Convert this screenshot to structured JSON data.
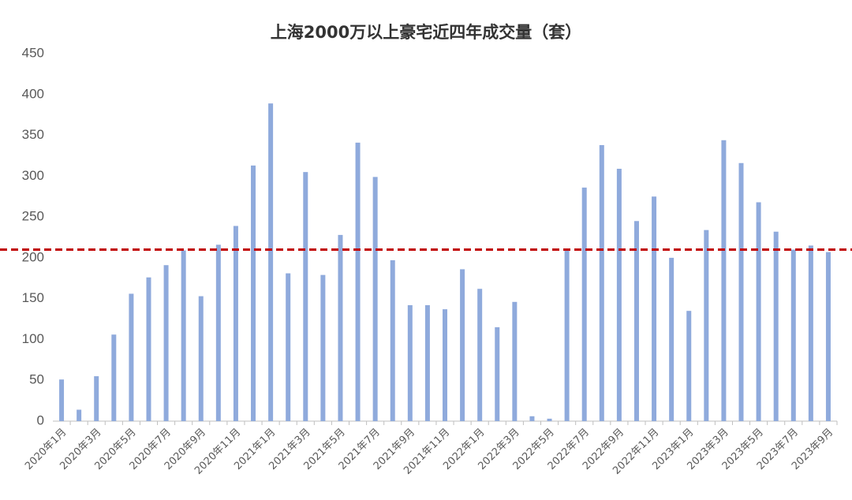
{
  "chart_data": {
    "type": "bar",
    "title": "上海2000万以上豪宅近四年成交量（套）",
    "categories": [
      "2020年1月",
      null,
      "2020年3月",
      null,
      "2020年5月",
      null,
      "2020年7月",
      null,
      "2020年9月",
      null,
      "2020年11月",
      null,
      "2021年1月",
      null,
      "2021年3月",
      null,
      "2021年5月",
      null,
      "2021年7月",
      null,
      "2021年9月",
      null,
      "2021年11月",
      null,
      "2022年1月",
      null,
      "2022年3月",
      null,
      "2022年5月",
      null,
      "2022年7月",
      null,
      "2022年9月",
      null,
      "2022年11月",
      null,
      "2023年1月",
      null,
      "2023年3月",
      null,
      "2023年5月",
      null,
      "2023年7月",
      null,
      "2023年9月"
    ],
    "values": [
      51,
      14,
      55,
      106,
      156,
      176,
      191,
      209,
      153,
      216,
      239,
      313,
      389,
      181,
      305,
      179,
      228,
      341,
      299,
      197,
      142,
      142,
      137,
      186,
      162,
      115,
      146,
      6,
      3,
      209,
      286,
      338,
      309,
      245,
      275,
      200,
      135,
      234,
      344,
      316,
      268,
      232,
      210,
      215,
      207
    ],
    "color": "#8faadc",
    "ylim": [
      0,
      450
    ],
    "yticks": [
      0,
      50,
      100,
      150,
      200,
      250,
      300,
      350,
      400,
      450
    ],
    "reference_line": {
      "value": 210,
      "color": "#c00000"
    }
  }
}
